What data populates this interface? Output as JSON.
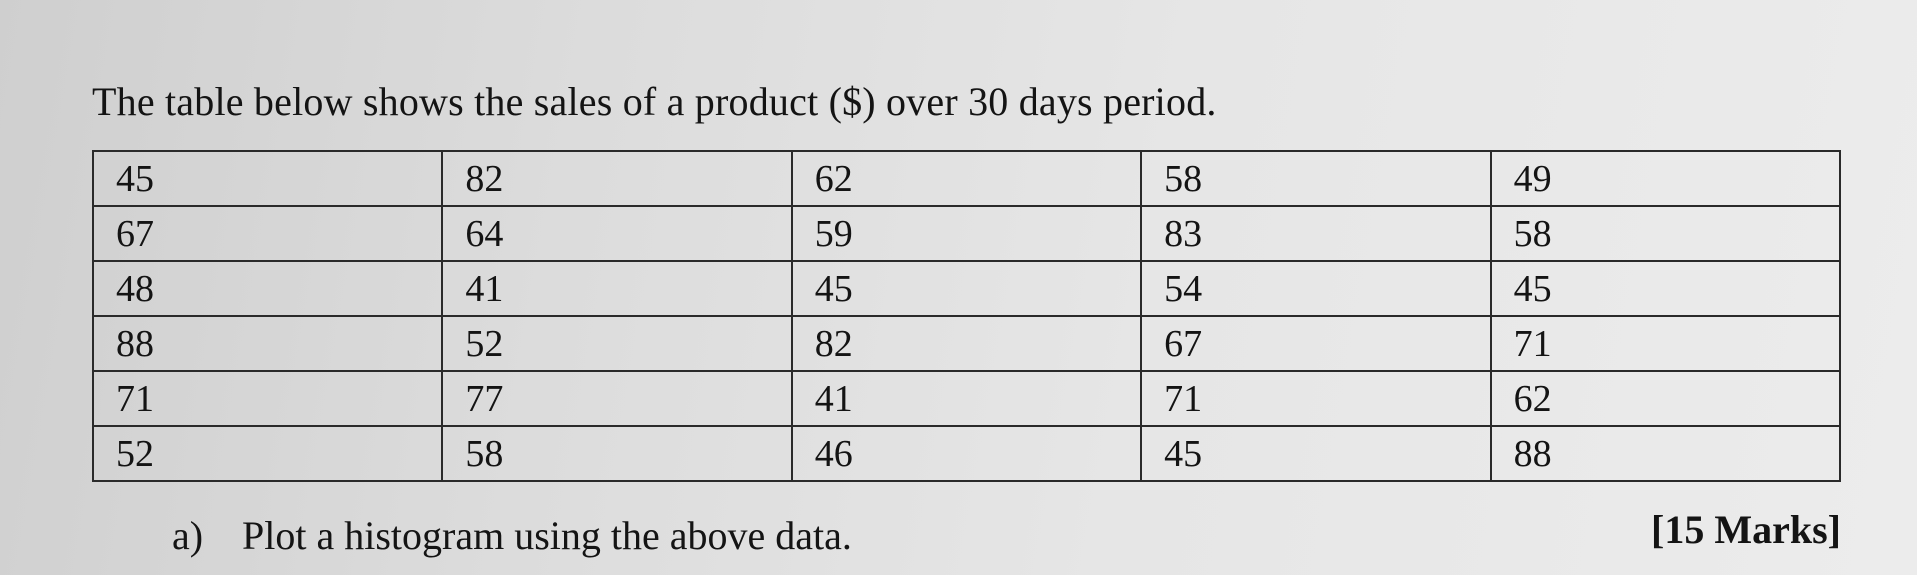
{
  "intro": "The table below shows the sales of a product ($) over 30 days period.",
  "table": {
    "rows": [
      [
        "45",
        "82",
        "62",
        "58",
        "49"
      ],
      [
        "67",
        "64",
        "59",
        "83",
        "58"
      ],
      [
        "48",
        "41",
        "45",
        "54",
        "45"
      ],
      [
        "88",
        "52",
        "82",
        "67",
        "71"
      ],
      [
        "71",
        "77",
        "41",
        "71",
        "62"
      ],
      [
        "52",
        "58",
        "46",
        "45",
        "88"
      ]
    ]
  },
  "question": {
    "label": "a)",
    "text": "Plot a histogram using the above data."
  },
  "marks": "[15 Marks]"
}
